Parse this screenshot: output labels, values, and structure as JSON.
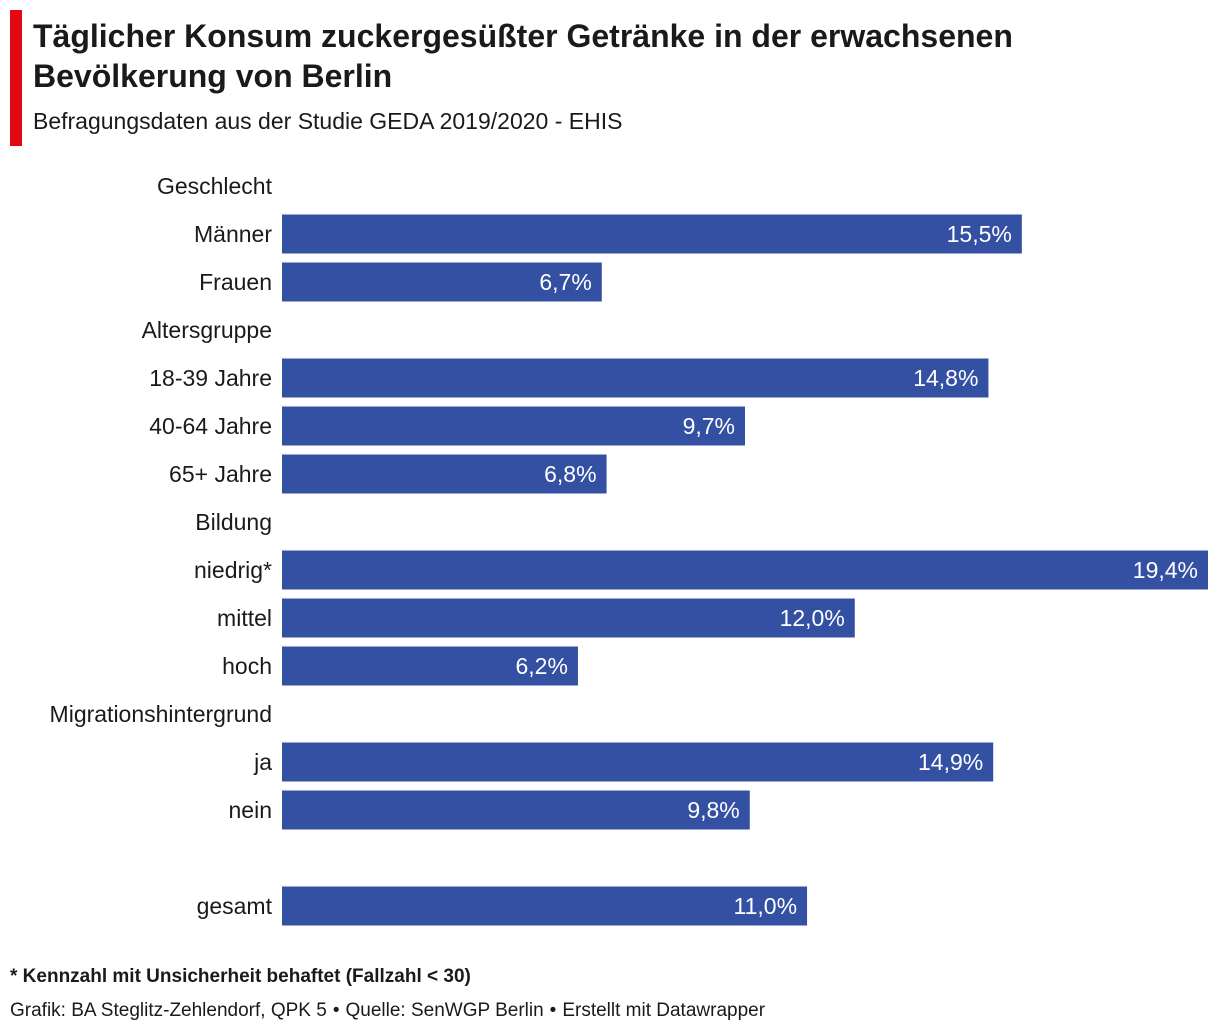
{
  "header": {
    "accent_color": "#e30613",
    "title": "Täglicher Konsum zuckergesüßter Getränke in der erwachsenen Bevölkerung von Berlin",
    "subtitle": "Befragungsdaten aus der Studie GEDA 2019/2020 - EHIS"
  },
  "chart_data": {
    "type": "bar",
    "orientation": "horizontal",
    "unit": "%",
    "bar_color": "#3450a3",
    "value_label_color": "#ffffff",
    "xlim": [
      0,
      19.4
    ],
    "rows": [
      {
        "kind": "group",
        "label": "Geschlecht"
      },
      {
        "kind": "bar",
        "label": "Männer",
        "value": 15.5,
        "value_label": "15,5%"
      },
      {
        "kind": "bar",
        "label": "Frauen",
        "value": 6.7,
        "value_label": "6,7%"
      },
      {
        "kind": "group",
        "label": "Altersgruppe"
      },
      {
        "kind": "bar",
        "label": "18-39 Jahre",
        "value": 14.8,
        "value_label": "14,8%"
      },
      {
        "kind": "bar",
        "label": "40-64 Jahre",
        "value": 9.7,
        "value_label": "9,7%"
      },
      {
        "kind": "bar",
        "label": "65+ Jahre",
        "value": 6.8,
        "value_label": "6,8%"
      },
      {
        "kind": "group",
        "label": "Bildung"
      },
      {
        "kind": "bar",
        "label": "niedrig*",
        "value": 19.4,
        "value_label": "19,4%"
      },
      {
        "kind": "bar",
        "label": "mittel",
        "value": 12.0,
        "value_label": "12,0%"
      },
      {
        "kind": "bar",
        "label": "hoch",
        "value": 6.2,
        "value_label": "6,2%"
      },
      {
        "kind": "group",
        "label": "Migrationshintergrund"
      },
      {
        "kind": "bar",
        "label": "ja",
        "value": 14.9,
        "value_label": "14,9%"
      },
      {
        "kind": "bar",
        "label": "nein",
        "value": 9.8,
        "value_label": "9,8%"
      },
      {
        "kind": "spacer",
        "label": ""
      },
      {
        "kind": "bar",
        "label": "gesamt",
        "value": 11.0,
        "value_label": "11,0%"
      }
    ]
  },
  "footer": {
    "footnote": "* Kennzahl mit Unsicherheit behaftet (Fallzahl < 30)",
    "credit_graphic": "Grafik: BA Steglitz-Zehlendorf, QPK 5",
    "credit_source": "Quelle: SenWGP Berlin",
    "credit_tool": "Erstellt mit Datawrapper",
    "separator": "•"
  }
}
